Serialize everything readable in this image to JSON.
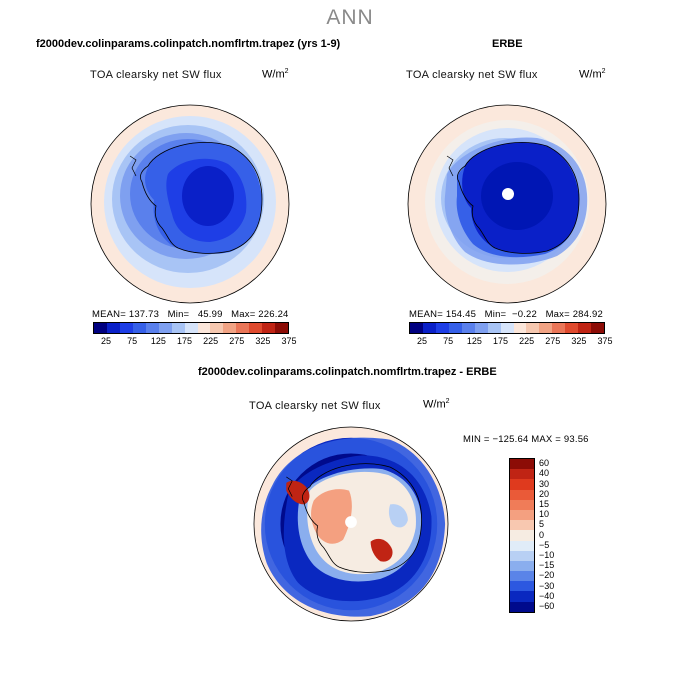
{
  "figure": {
    "season": "ANN"
  },
  "panels": {
    "model": {
      "title": "f2000dev.colinparams.colinpatch.nomflrtm.trapez (yrs 1-9)",
      "variable": "TOA clearsky net SW flux",
      "units_base": "W/m",
      "units_exp": "2",
      "mean_label": "MEAN=",
      "mean": "137.73",
      "min_label": "Min=",
      "min": "45.99",
      "max_label": "Max=",
      "max": "226.24"
    },
    "obs": {
      "title": "ERBE",
      "variable": "TOA clearsky net SW flux",
      "units_base": "W/m",
      "units_exp": "2",
      "mean_label": "MEAN=",
      "mean": "154.45",
      "min_label": "Min=",
      "min": "−0.22",
      "max_label": "Max=",
      "max": "284.92"
    },
    "diff": {
      "title": "f2000dev.colinparams.colinpatch.nomflrtm.trapez - ERBE",
      "variable": "TOA clearsky net SW flux",
      "units_base": "W/m",
      "units_exp": "2",
      "minmax": "MIN = −125.64  MAX =   93.56"
    }
  },
  "colorbars": {
    "abs": {
      "labels": [
        "25",
        "75",
        "125",
        "175",
        "225",
        "275",
        "325",
        "375"
      ],
      "colors": [
        "#000080",
        "#0a20c8",
        "#1e3ee6",
        "#3660e8",
        "#5a80ec",
        "#7fa0f0",
        "#a8c4f5",
        "#d6e4fa",
        "#fbe6da",
        "#f6c8b0",
        "#f1a384",
        "#ea7658",
        "#df4a2e",
        "#c02414",
        "#8c0c06"
      ]
    },
    "diff": {
      "labels": [
        "60",
        "40",
        "30",
        "20",
        "15",
        "10",
        "5",
        "0",
        "−5",
        "−10",
        "−15",
        "−20",
        "−30",
        "−40",
        "−60"
      ],
      "colors": [
        "#8c0c06",
        "#c02414",
        "#df3a1e",
        "#ea5a38",
        "#f07c58",
        "#f4a080",
        "#f8c8b0",
        "#f6ece2",
        "#e0ecf8",
        "#b8d0f4",
        "#8aaeee",
        "#5a84e8",
        "#2c58e0",
        "#0a28c0",
        "#000a8c"
      ]
    }
  }
}
